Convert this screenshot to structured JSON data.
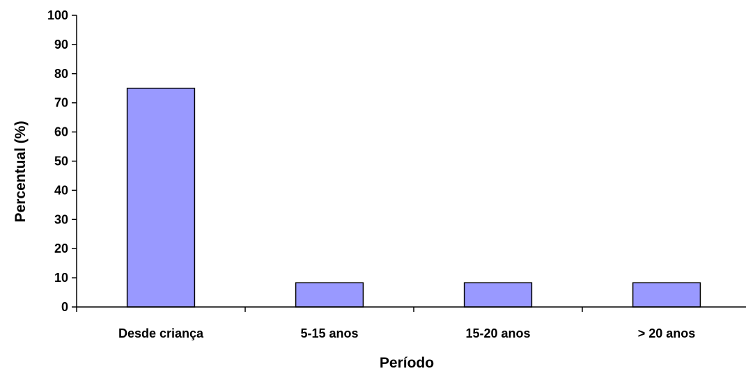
{
  "chart_data": {
    "type": "bar",
    "title": "",
    "xlabel": "Período",
    "ylabel": "Percentual (%)",
    "categories": [
      "Desde criança",
      "5-15 anos",
      "15-20 anos",
      "> 20 anos"
    ],
    "values": [
      75,
      8.3,
      8.3,
      8.3
    ],
    "ylim": [
      0,
      100
    ],
    "yticks": [
      0,
      10,
      20,
      30,
      40,
      50,
      60,
      70,
      80,
      90,
      100
    ],
    "grid": false,
    "legend": "none",
    "bar_color": "#9999ff",
    "bar_edge_color": "#000000"
  }
}
